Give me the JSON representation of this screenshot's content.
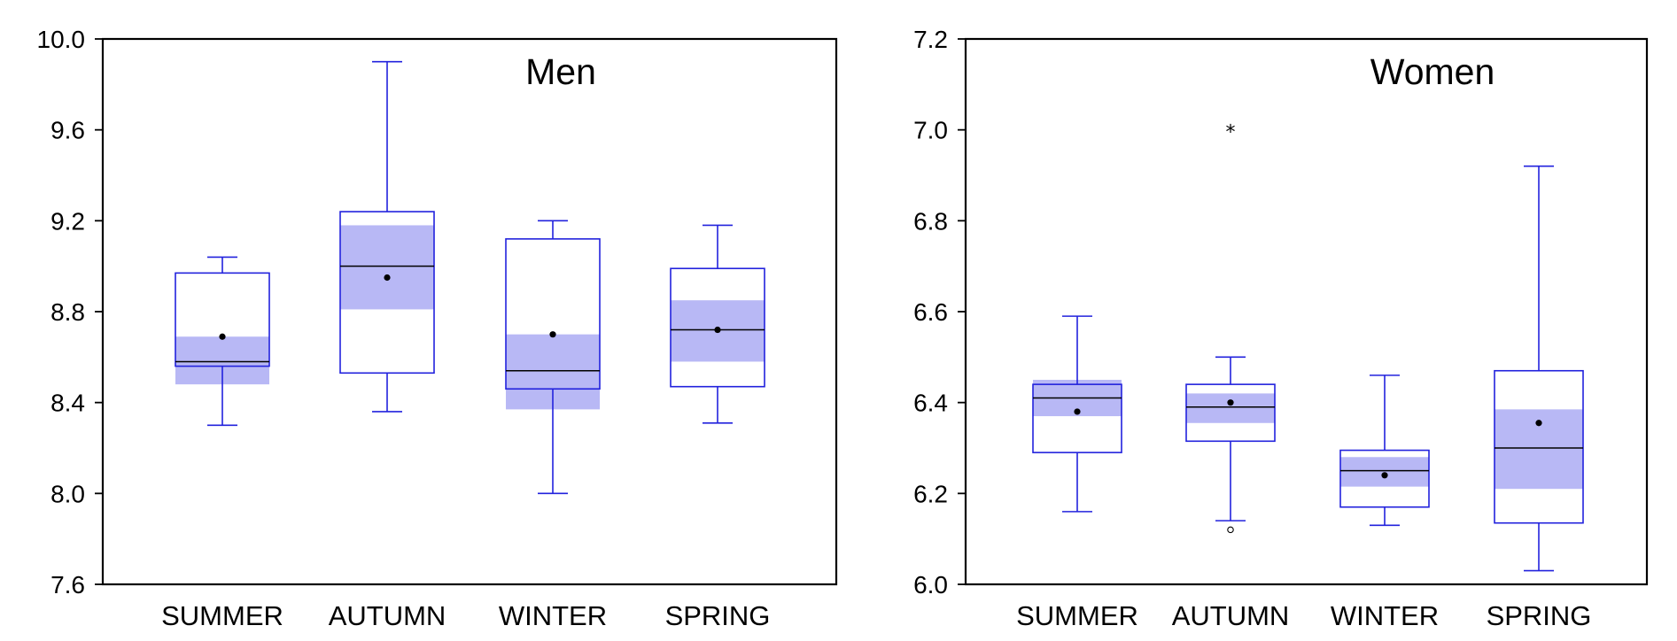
{
  "colors": {
    "box": "#2222dd",
    "ci_fill": "#b8b8f5",
    "median": "#000000",
    "frame": "#000000",
    "background": "#ffffff"
  },
  "chart_data": [
    {
      "type": "boxplot",
      "title": "Men",
      "categories": [
        "SUMMER",
        "AUTUMN",
        "WINTER",
        "SPRING"
      ],
      "ylim": [
        7.6,
        10.0
      ],
      "yticks": [
        7.6,
        8.0,
        8.4,
        8.8,
        9.2,
        9.6,
        10.0
      ],
      "ytick_labels": [
        "7.6",
        "8.0",
        "8.4",
        "8.8",
        "9.2",
        "9.6",
        "10.0"
      ],
      "grid": false,
      "boxes": [
        {
          "category": "SUMMER",
          "whisker_low": 8.3,
          "q1": 8.56,
          "median": 8.58,
          "q3": 8.97,
          "whisker_high": 9.04,
          "mean": 8.69,
          "ci_low": 8.48,
          "ci_high": 8.69,
          "outliers": []
        },
        {
          "category": "AUTUMN",
          "whisker_low": 8.36,
          "q1": 8.53,
          "median": 9.0,
          "q3": 9.24,
          "whisker_high": 9.9,
          "mean": 8.95,
          "ci_low": 8.81,
          "ci_high": 9.18,
          "outliers": []
        },
        {
          "category": "WINTER",
          "whisker_low": 8.0,
          "q1": 8.46,
          "median": 8.54,
          "q3": 9.12,
          "whisker_high": 9.2,
          "mean": 8.7,
          "ci_low": 8.37,
          "ci_high": 8.7,
          "outliers": []
        },
        {
          "category": "SPRING",
          "whisker_low": 8.31,
          "q1": 8.47,
          "median": 8.72,
          "q3": 8.99,
          "whisker_high": 9.18,
          "mean": 8.72,
          "ci_low": 8.58,
          "ci_high": 8.85,
          "outliers": []
        }
      ]
    },
    {
      "type": "boxplot",
      "title": "Women",
      "categories": [
        "SUMMER",
        "AUTUMN",
        "WINTER",
        "SPRING"
      ],
      "ylim": [
        6.0,
        7.2
      ],
      "yticks": [
        6.0,
        6.2,
        6.4,
        6.6,
        6.8,
        7.0,
        7.2
      ],
      "ytick_labels": [
        "6.0",
        "6.2",
        "6.4",
        "6.6",
        "6.8",
        "7.0",
        "7.2"
      ],
      "grid": false,
      "boxes": [
        {
          "category": "SUMMER",
          "whisker_low": 6.16,
          "q1": 6.29,
          "median": 6.41,
          "q3": 6.44,
          "whisker_high": 6.59,
          "mean": 6.38,
          "ci_low": 6.37,
          "ci_high": 6.45,
          "outliers": []
        },
        {
          "category": "AUTUMN",
          "whisker_low": 6.14,
          "q1": 6.315,
          "median": 6.39,
          "q3": 6.44,
          "whisker_high": 6.5,
          "mean": 6.4,
          "ci_low": 6.355,
          "ci_high": 6.42,
          "outliers": [
            {
              "value": 7.0,
              "marker": "star"
            },
            {
              "value": 6.12,
              "marker": "circle"
            }
          ]
        },
        {
          "category": "WINTER",
          "whisker_low": 6.13,
          "q1": 6.17,
          "median": 6.25,
          "q3": 6.295,
          "whisker_high": 6.46,
          "mean": 6.24,
          "ci_low": 6.215,
          "ci_high": 6.28,
          "outliers": []
        },
        {
          "category": "SPRING",
          "whisker_low": 6.03,
          "q1": 6.135,
          "median": 6.3,
          "q3": 6.47,
          "whisker_high": 6.92,
          "mean": 6.355,
          "ci_low": 6.21,
          "ci_high": 6.385,
          "outliers": []
        }
      ]
    }
  ]
}
